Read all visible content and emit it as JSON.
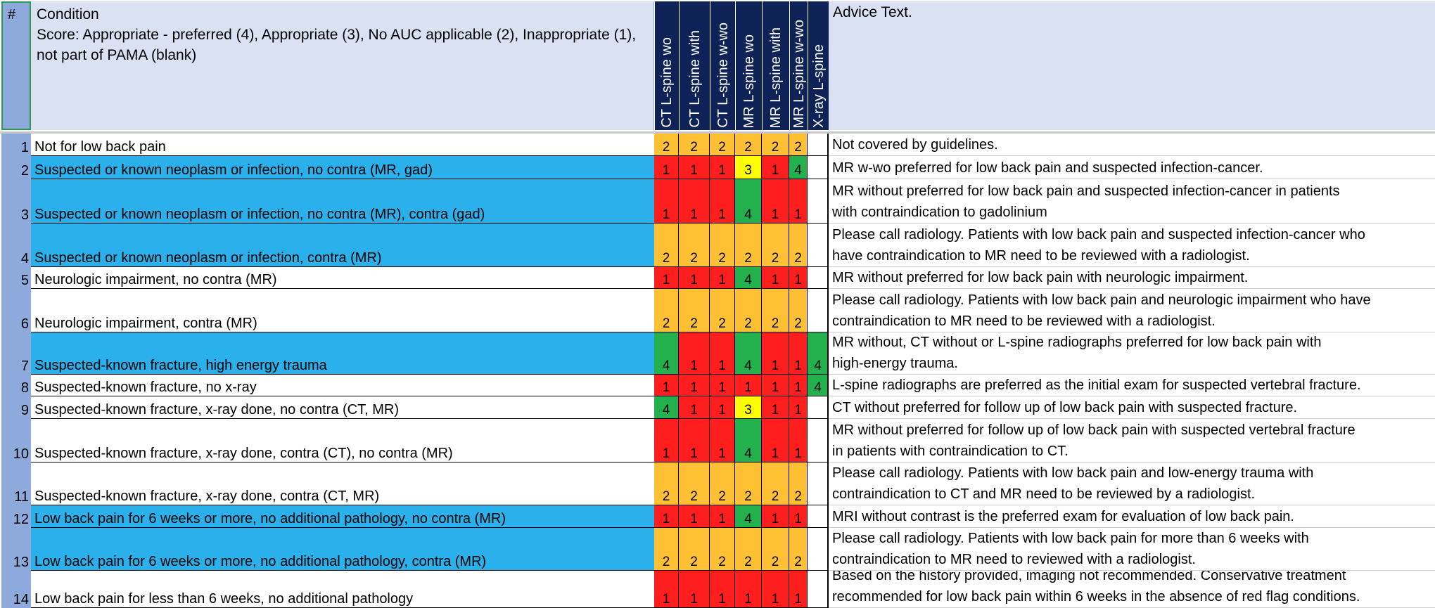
{
  "header": {
    "num": "#",
    "condition_title": "Condition",
    "condition_legend": "Score: Appropriate - preferred (4), Appropriate (3), No AUC applicable (2), Inappropriate (1), not part of PAMA (blank)",
    "advice_title": "Advice Text.",
    "modalities": [
      "CT L-spine wo",
      "CT L-spine with",
      "CT L-spine w-wo",
      "MR L-spine wo",
      "MR L-spine with",
      "MR L-spine w-wo",
      "X-ray L-spine"
    ]
  },
  "colors": {
    "header_bg": "#d9e1f2",
    "modality_header_bg": "#0e2258",
    "number_col_bg": "#8ea9db",
    "highlight_row": "#2ab0ea",
    "score_4": "#22b14c",
    "score_3": "#ffff00",
    "score_2": "#ffc133",
    "score_1": "#ff1e1e"
  },
  "rows": [
    {
      "num": "1",
      "condition": "Not for low back pain",
      "highlight": false,
      "scores": [
        "2",
        "2",
        "2",
        "2",
        "2",
        "2",
        ""
      ],
      "advice": [
        "Not covered by guidelines."
      ]
    },
    {
      "num": "2",
      "condition": "Suspected or known neoplasm or infection, no contra (MR, gad)",
      "highlight": true,
      "scores": [
        "1",
        "1",
        "1",
        "3",
        "1",
        "4",
        ""
      ],
      "advice": [
        "MR w-wo preferred for low back pain and suspected infection-cancer."
      ]
    },
    {
      "num": "3",
      "condition": "Suspected or known neoplasm or infection, no contra (MR), contra (gad)",
      "highlight": true,
      "scores": [
        "1",
        "1",
        "1",
        "4",
        "1",
        "1",
        ""
      ],
      "advice": [
        "MR without preferred for low back pain and suspected infection-cancer in patients",
        "with contraindication to gadolinium"
      ]
    },
    {
      "num": "4",
      "condition": "Suspected or known neoplasm or infection, contra (MR)",
      "highlight": true,
      "scores": [
        "2",
        "2",
        "2",
        "2",
        "2",
        "2",
        ""
      ],
      "advice": [
        "Please call radiology.  Patients with low back pain and suspected infection-cancer who",
        "have contraindication to MR need to be reviewed with a radiologist."
      ]
    },
    {
      "num": "5",
      "condition": "Neurologic impairment, no contra (MR)",
      "highlight": false,
      "scores": [
        "1",
        "1",
        "1",
        "4",
        "1",
        "1",
        ""
      ],
      "advice": [
        "MR without preferred for low back pain with neurologic impairment."
      ]
    },
    {
      "num": "6",
      "condition": "Neurologic impairment, contra (MR)",
      "highlight": false,
      "scores": [
        "2",
        "2",
        "2",
        "2",
        "2",
        "2",
        ""
      ],
      "advice": [
        "Please call radiology.  Patients with low back pain and neurologic impairment who have",
        "contraindication to MR need to be reviewed with a radiologist."
      ]
    },
    {
      "num": "7",
      "condition": "Suspected-known fracture, high energy trauma",
      "highlight": true,
      "scores": [
        "4",
        "1",
        "1",
        "4",
        "1",
        "1",
        "4"
      ],
      "advice": [
        "MR without, CT without or L-spine radiographs preferred for low back pain with",
        "high-energy trauma."
      ]
    },
    {
      "num": "8",
      "condition": "Suspected-known fracture, no x-ray",
      "highlight": false,
      "scores": [
        "1",
        "1",
        "1",
        "1",
        "1",
        "1",
        "4"
      ],
      "advice": [
        "L-spine radiographs are preferred as the initial exam for suspected vertebral fracture."
      ]
    },
    {
      "num": "9",
      "condition": "Suspected-known fracture, x-ray done, no contra (CT, MR)",
      "highlight": false,
      "scores": [
        "4",
        "1",
        "1",
        "3",
        "1",
        "1",
        ""
      ],
      "advice": [
        "CT without preferred for follow up of low back pain with suspected fracture."
      ]
    },
    {
      "num": "10",
      "condition": "Suspected-known fracture, x-ray done, contra (CT), no contra (MR)",
      "highlight": false,
      "scores": [
        "1",
        "1",
        "1",
        "4",
        "1",
        "1",
        ""
      ],
      "advice": [
        "MR without preferred for follow up of low back pain with suspected vertebral fracture",
        "in patients with contraindication to CT."
      ]
    },
    {
      "num": "11",
      "condition": "Suspected-known fracture, x-ray done, contra (CT, MR)",
      "highlight": false,
      "scores": [
        "2",
        "2",
        "2",
        "2",
        "2",
        "2",
        ""
      ],
      "advice": [
        "Please call radiology.  Patients with low back pain and low-energy trauma with",
        "contraindication to CT and MR need to be reviewed by a radiologist."
      ]
    },
    {
      "num": "12",
      "condition": "Low back pain for 6 weeks or more, no additional pathology, no contra (MR)",
      "highlight": true,
      "scores": [
        "1",
        "1",
        "1",
        "4",
        "1",
        "1",
        ""
      ],
      "advice": [
        "MRI without contrast is the preferred exam for evaluation of low back pain."
      ]
    },
    {
      "num": "13",
      "condition": "Low back pain for 6 weeks or more, no additional pathology, contra (MR)",
      "highlight": true,
      "scores": [
        "2",
        "2",
        "2",
        "2",
        "2",
        "2",
        ""
      ],
      "advice": [
        "Please call radiology.  Patients with low back pain for more than 6 weeks with",
        "contraindication to MR need to reviewed with a radiologist."
      ]
    },
    {
      "num": "14",
      "condition": "Low back pain for less than 6 weeks, no additional pathology",
      "highlight": false,
      "scores": [
        "1",
        "1",
        "1",
        "1",
        "1",
        "1",
        ""
      ],
      "advice": [
        "Based on the history provided, imaging not recommended. Conservative treatment",
        "recommended for low back pain within 6 weeks in the absence of red flag conditions."
      ]
    }
  ]
}
